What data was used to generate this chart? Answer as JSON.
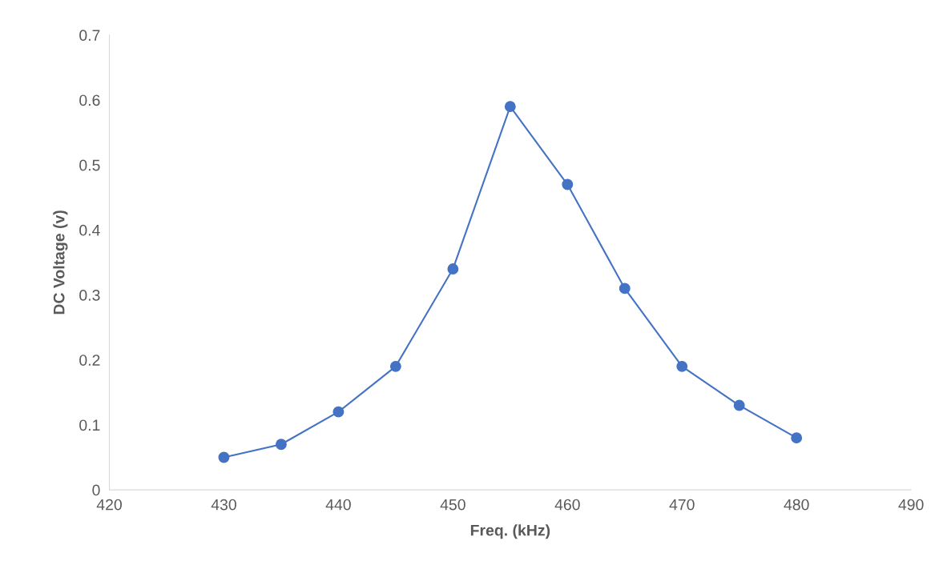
{
  "chart_data": {
    "type": "line",
    "xlabel": "Freq. (kHz)",
    "ylabel": "DC Voltage (v)",
    "x": [
      430,
      435,
      440,
      445,
      450,
      455,
      460,
      465,
      470,
      475,
      480
    ],
    "series": [
      {
        "color": "#4472c4",
        "values": [
          0.05,
          0.07,
          0.12,
          0.19,
          0.34,
          0.59,
          0.47,
          0.31,
          0.19,
          0.13,
          0.08
        ]
      }
    ],
    "xlim": [
      420,
      490
    ],
    "xticks": [
      420,
      430,
      440,
      450,
      460,
      470,
      480,
      490
    ],
    "ylim": [
      0,
      0.7
    ],
    "yticks": [
      0,
      0.1,
      0.2,
      0.3,
      0.4,
      0.5,
      0.6,
      0.7
    ],
    "grid": false,
    "marker": "circle",
    "line_style": "solid"
  }
}
